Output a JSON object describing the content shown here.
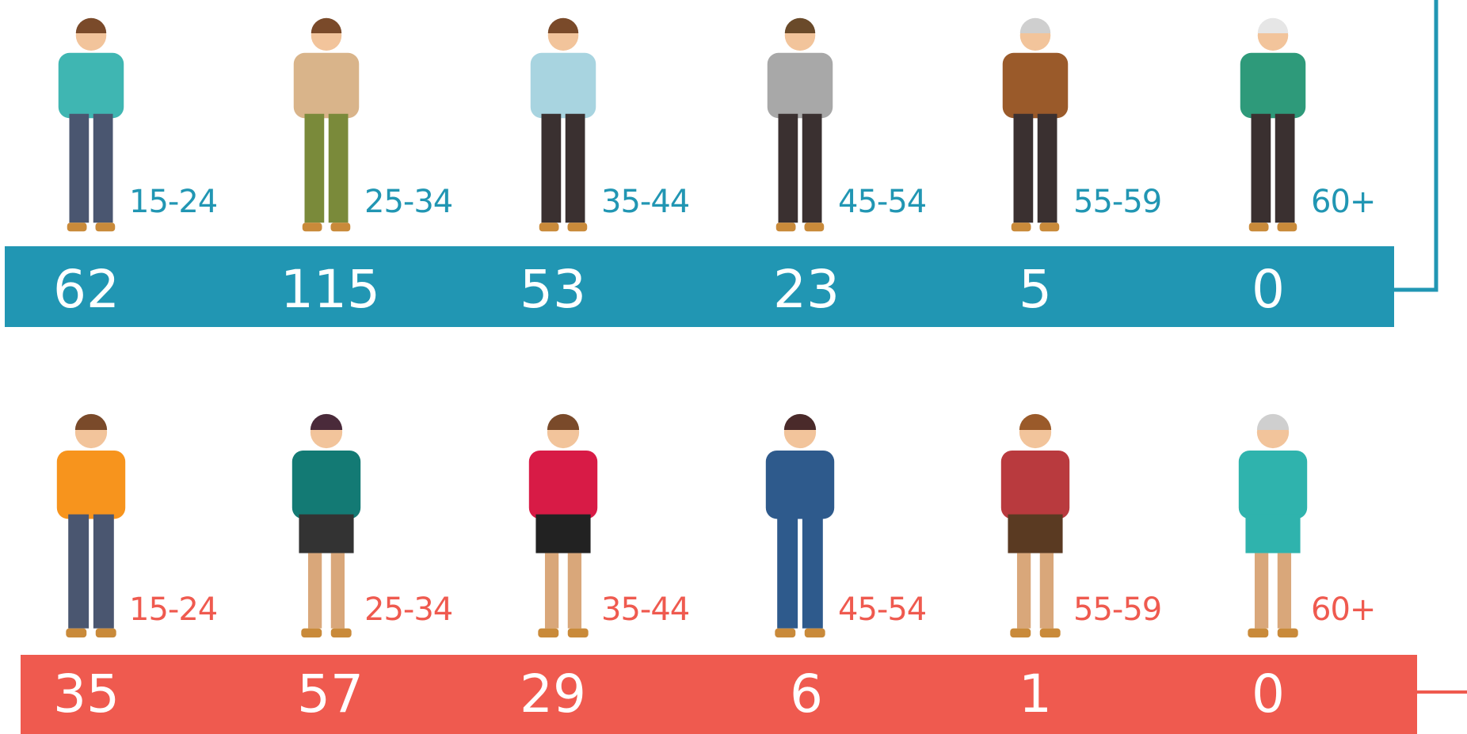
{
  "male": {
    "items": [
      {
        "age": "15-24",
        "count": 62
      },
      {
        "age": "25-34",
        "count": 115
      },
      {
        "age": "35-44",
        "count": 53
      },
      {
        "age": "45-54",
        "count": 23
      },
      {
        "age": "55-59",
        "count": 5
      },
      {
        "age": "60+",
        "count": 0
      }
    ]
  },
  "female": {
    "items": [
      {
        "age": "15-24",
        "count": 35
      },
      {
        "age": "25-34",
        "count": 57
      },
      {
        "age": "35-44",
        "count": 29
      },
      {
        "age": "45-54",
        "count": 6
      },
      {
        "age": "55-59",
        "count": 1
      },
      {
        "age": "60+",
        "count": 0
      }
    ]
  }
}
